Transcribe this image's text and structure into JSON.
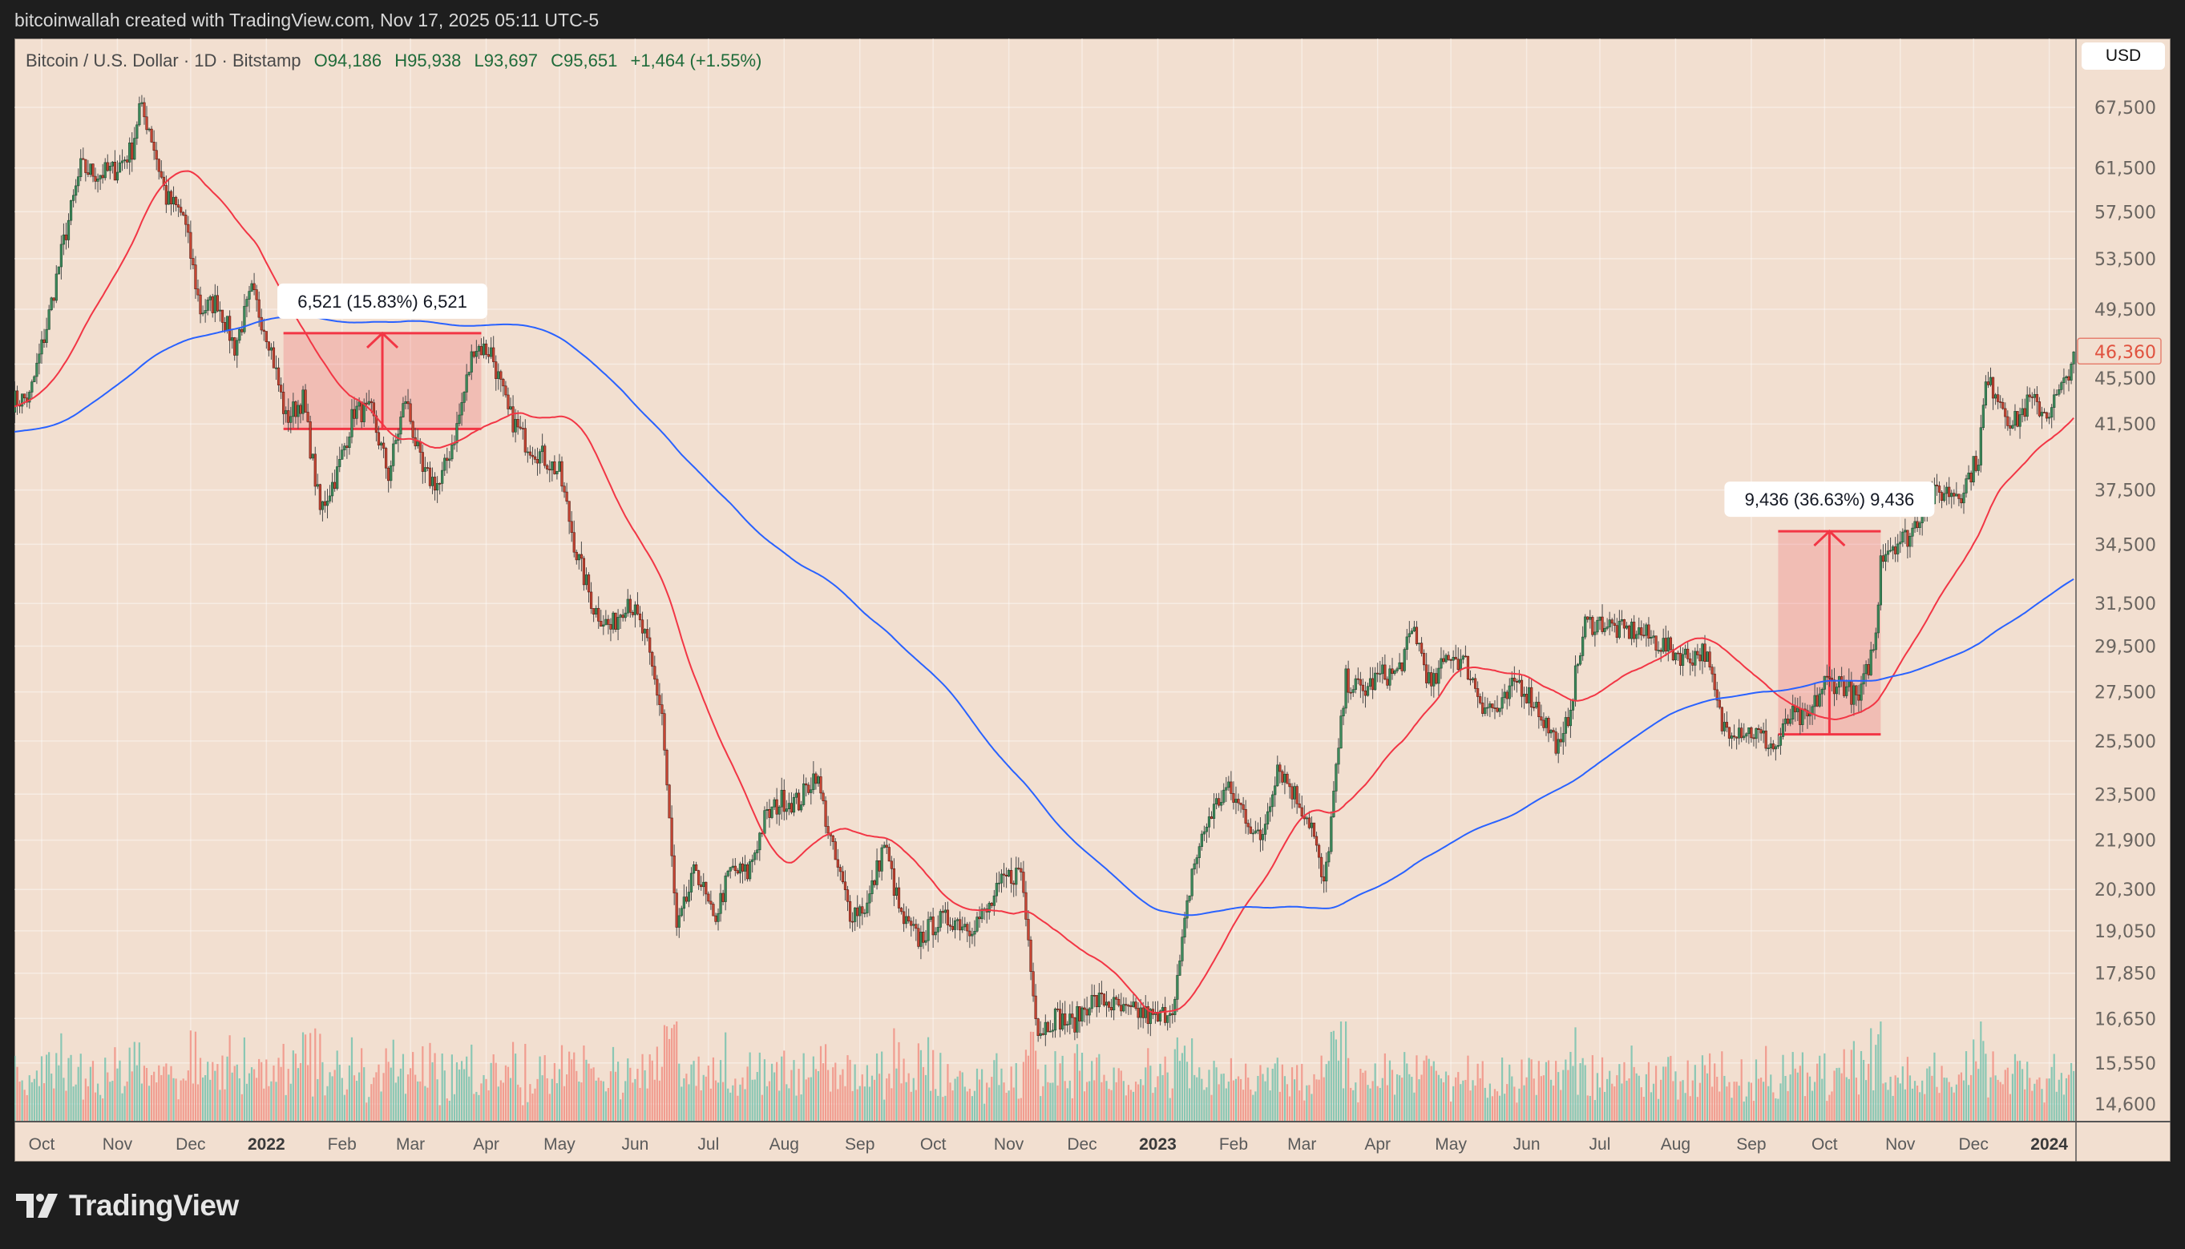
{
  "credit": "bitcoinwallah created with TradingView.com, Nov 17, 2025 05:11 UTC-5",
  "legend": {
    "symbol": "Bitcoin / U.S. Dollar · 1D · Bitstamp",
    "open": "O94,186",
    "high": "H95,938",
    "low": "L93,697",
    "close": "C95,651",
    "change": "+1,464 (+1.55%)"
  },
  "currency_button": "USD",
  "logo_text": "TradingView",
  "colors": {
    "background": "#f2dfd0",
    "up_candle": "#3d8b5c",
    "down_candle": "#c84634",
    "ma_fast": "#f23645",
    "ma_slow": "#2962ff",
    "measure": "#f23645"
  },
  "chart_data": {
    "type": "candlestick",
    "y_scale": "log",
    "ylim": [
      14200,
      70000
    ],
    "xlim": [
      "2021-09-20",
      "2024-01-11"
    ],
    "grid": true,
    "y_ticks": [
      "67,500",
      "61,500",
      "57,500",
      "53,500",
      "49,500",
      "45,500",
      "41,500",
      "37,500",
      "34,500",
      "31,500",
      "29,500",
      "27,500",
      "25,500",
      "23,500",
      "21,900",
      "20,300",
      "19,050",
      "17,850",
      "16,650",
      "15,550",
      "14,600"
    ],
    "x_ticks": [
      {
        "date": "2021-10-01",
        "label": "Oct"
      },
      {
        "date": "2021-11-01",
        "label": "Nov"
      },
      {
        "date": "2021-12-01",
        "label": "Dec"
      },
      {
        "date": "2022-01-01",
        "label": "2022",
        "bold": true
      },
      {
        "date": "2022-02-01",
        "label": "Feb"
      },
      {
        "date": "2022-03-01",
        "label": "Mar"
      },
      {
        "date": "2022-04-01",
        "label": "Apr"
      },
      {
        "date": "2022-05-01",
        "label": "May"
      },
      {
        "date": "2022-06-01",
        "label": "Jun"
      },
      {
        "date": "2022-07-01",
        "label": "Jul"
      },
      {
        "date": "2022-08-01",
        "label": "Aug"
      },
      {
        "date": "2022-09-01",
        "label": "Sep"
      },
      {
        "date": "2022-10-01",
        "label": "Oct"
      },
      {
        "date": "2022-11-01",
        "label": "Nov"
      },
      {
        "date": "2022-12-01",
        "label": "Dec"
      },
      {
        "date": "2023-01-01",
        "label": "2023",
        "bold": true
      },
      {
        "date": "2023-02-01",
        "label": "Feb"
      },
      {
        "date": "2023-03-01",
        "label": "Mar"
      },
      {
        "date": "2023-04-01",
        "label": "Apr"
      },
      {
        "date": "2023-05-01",
        "label": "May"
      },
      {
        "date": "2023-06-01",
        "label": "Jun"
      },
      {
        "date": "2023-07-01",
        "label": "Jul"
      },
      {
        "date": "2023-08-01",
        "label": "Aug"
      },
      {
        "date": "2023-09-01",
        "label": "Sep"
      },
      {
        "date": "2023-10-01",
        "label": "Oct"
      },
      {
        "date": "2023-11-01",
        "label": "Nov"
      },
      {
        "date": "2023-12-01",
        "label": "Dec"
      },
      {
        "date": "2024-01-01",
        "label": "2024",
        "bold": true
      }
    ],
    "last_price": {
      "value": 46360,
      "label": "46,360"
    },
    "moving_averages": [
      {
        "period_days": 50,
        "color": "#f23645"
      },
      {
        "period_days": 200,
        "color": "#2962ff"
      }
    ],
    "close_series": [
      [
        "2021-09-19",
        43000
      ],
      [
        "2021-09-26",
        43200
      ],
      [
        "2021-10-03",
        48200
      ],
      [
        "2021-10-10",
        54900
      ],
      [
        "2021-10-17",
        61500
      ],
      [
        "2021-10-24",
        60900
      ],
      [
        "2021-10-31",
        61300
      ],
      [
        "2021-11-07",
        63300
      ],
      [
        "2021-11-10",
        67500
      ],
      [
        "2021-11-14",
        65500
      ],
      [
        "2021-11-21",
        58700
      ],
      [
        "2021-11-28",
        57200
      ],
      [
        "2021-12-05",
        49400
      ],
      [
        "2021-12-12",
        50100
      ],
      [
        "2021-12-19",
        46700
      ],
      [
        "2021-12-26",
        50800
      ],
      [
        "2022-01-02",
        47300
      ],
      [
        "2022-01-09",
        41800
      ],
      [
        "2022-01-16",
        43100
      ],
      [
        "2022-01-23",
        36300
      ],
      [
        "2022-01-30",
        38500
      ],
      [
        "2022-02-06",
        42400
      ],
      [
        "2022-02-13",
        42200
      ],
      [
        "2022-02-20",
        38400
      ],
      [
        "2022-02-27",
        43200
      ],
      [
        "2022-03-06",
        38400
      ],
      [
        "2022-03-13",
        37800
      ],
      [
        "2022-03-20",
        41300
      ],
      [
        "2022-03-27",
        46800
      ],
      [
        "2022-04-03",
        46400
      ],
      [
        "2022-04-10",
        42200
      ],
      [
        "2022-04-17",
        40400
      ],
      [
        "2022-04-24",
        39500
      ],
      [
        "2022-05-01",
        38500
      ],
      [
        "2022-05-08",
        34000
      ],
      [
        "2022-05-15",
        31300
      ],
      [
        "2022-05-22",
        30300
      ],
      [
        "2022-05-29",
        31800
      ],
      [
        "2022-06-05",
        29900
      ],
      [
        "2022-06-12",
        26600
      ],
      [
        "2022-06-18",
        19000
      ],
      [
        "2022-06-26",
        21000
      ],
      [
        "2022-07-03",
        19300
      ],
      [
        "2022-07-10",
        20900
      ],
      [
        "2022-07-17",
        20800
      ],
      [
        "2022-07-24",
        22600
      ],
      [
        "2022-07-31",
        23300
      ],
      [
        "2022-08-07",
        23200
      ],
      [
        "2022-08-14",
        24300
      ],
      [
        "2022-08-21",
        21500
      ],
      [
        "2022-08-28",
        19600
      ],
      [
        "2022-09-04",
        19800
      ],
      [
        "2022-09-11",
        21800
      ],
      [
        "2022-09-18",
        19400
      ],
      [
        "2022-09-25",
        18800
      ],
      [
        "2022-10-02",
        19300
      ],
      [
        "2022-10-09",
        19400
      ],
      [
        "2022-10-16",
        19200
      ],
      [
        "2022-10-23",
        19600
      ],
      [
        "2022-10-30",
        20600
      ],
      [
        "2022-11-06",
        20900
      ],
      [
        "2022-11-13",
        16300
      ],
      [
        "2022-11-20",
        16700
      ],
      [
        "2022-11-27",
        16500
      ],
      [
        "2022-12-04",
        17100
      ],
      [
        "2022-12-11",
        17100
      ],
      [
        "2022-12-18",
        16800
      ],
      [
        "2022-12-25",
        16800
      ],
      [
        "2023-01-01",
        16600
      ],
      [
        "2023-01-08",
        17100
      ],
      [
        "2023-01-15",
        20900
      ],
      [
        "2023-01-22",
        22700
      ],
      [
        "2023-01-29",
        23700
      ],
      [
        "2023-02-05",
        22900
      ],
      [
        "2023-02-12",
        21800
      ],
      [
        "2023-02-19",
        24600
      ],
      [
        "2023-02-26",
        23500
      ],
      [
        "2023-03-05",
        22400
      ],
      [
        "2023-03-10",
        20300
      ],
      [
        "2023-03-19",
        28000
      ],
      [
        "2023-03-26",
        27500
      ],
      [
        "2023-04-02",
        28200
      ],
      [
        "2023-04-09",
        28300
      ],
      [
        "2023-04-16",
        30300
      ],
      [
        "2023-04-23",
        27600
      ],
      [
        "2023-04-30",
        29200
      ],
      [
        "2023-05-07",
        28700
      ],
      [
        "2023-05-14",
        27000
      ],
      [
        "2023-05-21",
        26700
      ],
      [
        "2023-05-28",
        28000
      ],
      [
        "2023-06-04",
        27100
      ],
      [
        "2023-06-15",
        25100
      ],
      [
        "2023-06-18",
        26500
      ],
      [
        "2023-06-25",
        30500
      ],
      [
        "2023-07-02",
        30600
      ],
      [
        "2023-07-09",
        30200
      ],
      [
        "2023-07-16",
        30200
      ],
      [
        "2023-07-23",
        29800
      ],
      [
        "2023-07-30",
        29300
      ],
      [
        "2023-08-06",
        29000
      ],
      [
        "2023-08-13",
        29300
      ],
      [
        "2023-08-20",
        26100
      ],
      [
        "2023-08-27",
        26000
      ],
      [
        "2023-09-03",
        25800
      ],
      [
        "2023-09-11",
        25200
      ],
      [
        "2023-09-17",
        26500
      ],
      [
        "2023-09-24",
        26300
      ],
      [
        "2023-10-01",
        27900
      ],
      [
        "2023-10-08",
        27900
      ],
      [
        "2023-10-15",
        27100
      ],
      [
        "2023-10-22",
        29900
      ],
      [
        "2023-10-24",
        34000
      ],
      [
        "2023-10-29",
        34500
      ],
      [
        "2023-11-05",
        35000
      ],
      [
        "2023-11-12",
        37000
      ],
      [
        "2023-11-19",
        37400
      ],
      [
        "2023-11-26",
        37400
      ],
      [
        "2023-12-03",
        39500
      ],
      [
        "2023-12-06",
        44000
      ],
      [
        "2023-12-10",
        43800
      ],
      [
        "2023-12-17",
        41400
      ],
      [
        "2023-12-24",
        43000
      ],
      [
        "2023-12-31",
        42200
      ],
      [
        "2024-01-07",
        44000
      ],
      [
        "2024-01-11",
        46360
      ]
    ],
    "measurements": [
      {
        "label": "6,521 (15.83%) 6,521",
        "start": "2022-01-08",
        "end": "2022-03-30",
        "from_price": 41190,
        "to_price": 47711
      },
      {
        "label": "9,436 (36.63%) 9,436",
        "start": "2023-09-12",
        "end": "2023-10-24",
        "from_price": 25760,
        "to_price": 35196
      }
    ]
  }
}
